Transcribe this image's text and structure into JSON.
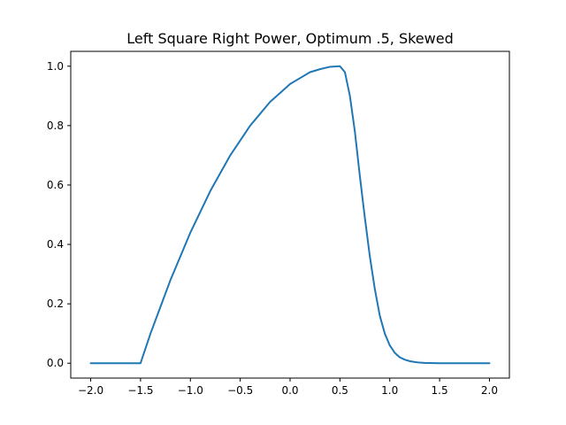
{
  "chart_data": {
    "type": "line",
    "title": "Left Square Right Power, Optimum .5, Skewed",
    "xlabel": "",
    "ylabel": "",
    "xlim": [
      -2.2,
      2.2
    ],
    "ylim": [
      -0.05,
      1.05
    ],
    "x_ticks": [
      -2.0,
      -1.5,
      -1.0,
      -0.5,
      0.0,
      0.5,
      1.0,
      1.5,
      2.0
    ],
    "x_tick_labels": [
      "−2.0",
      "−1.5",
      "−1.0",
      "−0.5",
      "0.0",
      "0.5",
      "1.0",
      "1.5",
      "2.0"
    ],
    "y_ticks": [
      0.0,
      0.2,
      0.4,
      0.6,
      0.8,
      1.0
    ],
    "y_tick_labels": [
      "0.0",
      "0.2",
      "0.4",
      "0.6",
      "0.8",
      "1.0"
    ],
    "grid": false,
    "line_color": "#1f77b4",
    "series": [
      {
        "x": [
          -2.0,
          -1.9,
          -1.8,
          -1.7,
          -1.6,
          -1.5,
          -1.4,
          -1.3,
          -1.2,
          -1.1,
          -1.0,
          -0.9,
          -0.8,
          -0.7,
          -0.6,
          -0.5,
          -0.4,
          -0.3,
          -0.2,
          -0.1,
          0.0,
          0.1,
          0.2,
          0.3,
          0.4,
          0.5,
          0.55,
          0.6,
          0.65,
          0.7,
          0.75,
          0.8,
          0.85,
          0.9,
          0.95,
          1.0,
          1.05,
          1.1,
          1.15,
          1.2,
          1.25,
          1.3,
          1.35,
          1.4,
          1.5,
          1.6,
          1.7,
          1.8,
          1.9,
          2.0
        ],
        "y": [
          0.0,
          0.0,
          0.0,
          0.0,
          0.0,
          0.0,
          0.1,
          0.19,
          0.28,
          0.36,
          0.44,
          0.51,
          0.58,
          0.64,
          0.7,
          0.75,
          0.8,
          0.84,
          0.88,
          0.91,
          0.94,
          0.96,
          0.98,
          0.99,
          0.998,
          1.0,
          0.98,
          0.9,
          0.78,
          0.63,
          0.49,
          0.36,
          0.25,
          0.16,
          0.1,
          0.06,
          0.035,
          0.02,
          0.012,
          0.007,
          0.004,
          0.002,
          0.001,
          0.0005,
          0.0,
          0.0,
          0.0,
          0.0,
          0.0,
          0.0
        ]
      }
    ]
  }
}
